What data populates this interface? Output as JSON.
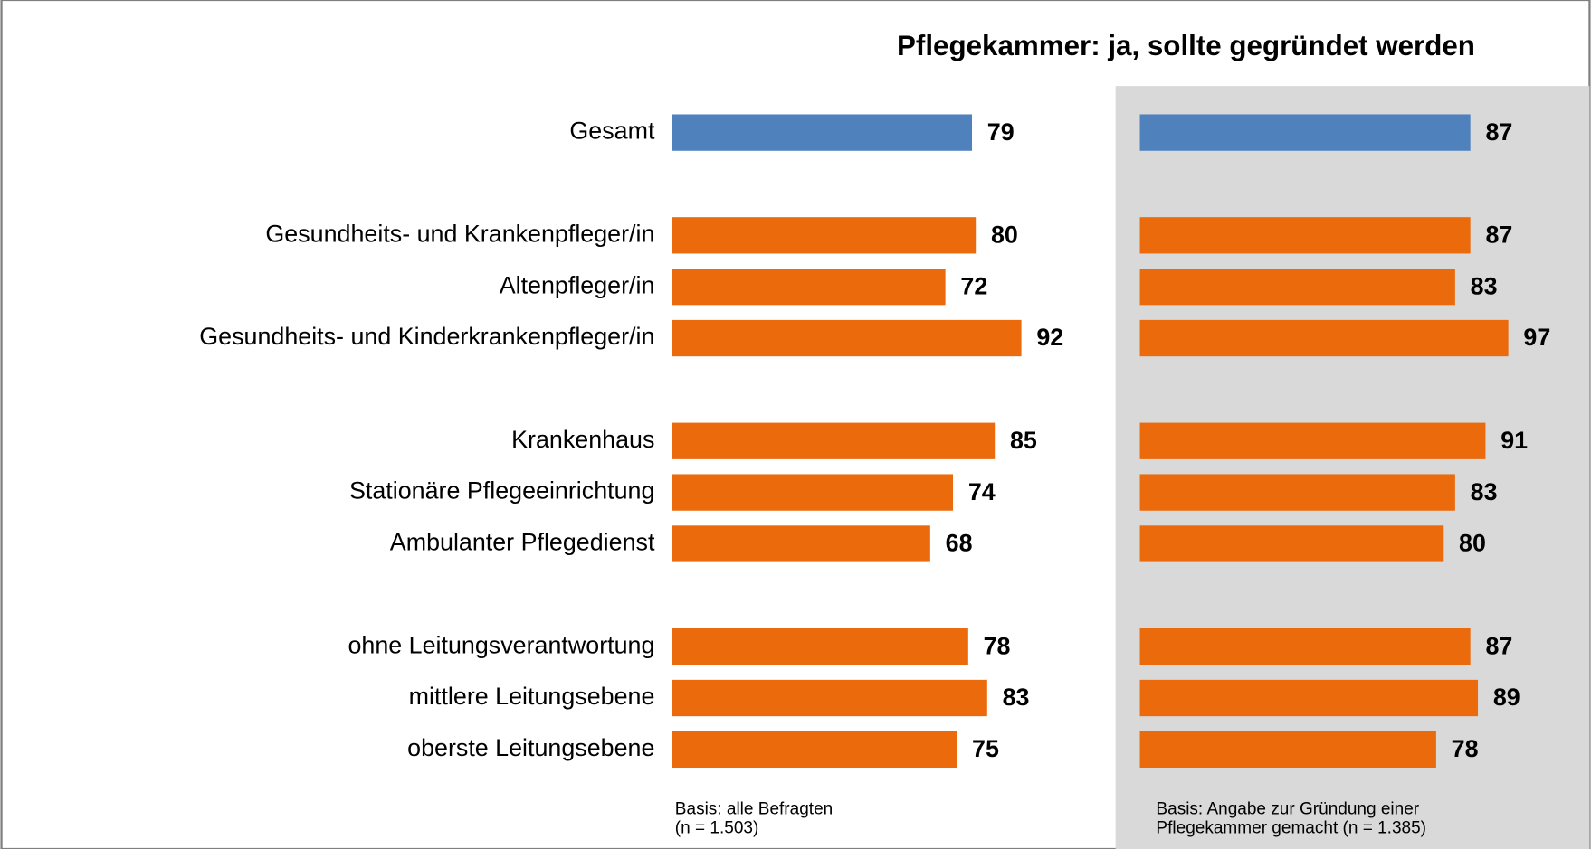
{
  "chart_data": {
    "type": "bar",
    "orientation": "horizontal",
    "title": "Pflegekammer: ja, sollte gegründet werden",
    "categories": [
      "Gesamt",
      "Gesundheits- und Krankenpfleger/in",
      "Altenpfleger/in",
      "Gesundheits- und Kinderkrankenpfleger/in",
      "Krankenhaus",
      "Stationäre Pflegeeinrichtung",
      "Ambulanter Pflegedienst",
      "ohne Leitungsverantwortung",
      "mittlere Leitungsebene",
      "oberste Leitungsebene"
    ],
    "series": [
      {
        "values": [
          79,
          80,
          72,
          92,
          85,
          74,
          68,
          78,
          83,
          75
        ],
        "colors": [
          "#4f81bd",
          "#eb6a0c",
          "#eb6a0c",
          "#eb6a0c",
          "#eb6a0c",
          "#eb6a0c",
          "#eb6a0c",
          "#eb6a0c",
          "#eb6a0c",
          "#eb6a0c"
        ],
        "note": [
          "Basis: alle Befragten",
          "(n = 1.503)"
        ]
      },
      {
        "values": [
          87,
          87,
          83,
          97,
          91,
          83,
          80,
          87,
          89,
          78
        ],
        "colors": [
          "#4f81bd",
          "#eb6a0c",
          "#eb6a0c",
          "#eb6a0c",
          "#eb6a0c",
          "#eb6a0c",
          "#eb6a0c",
          "#eb6a0c",
          "#eb6a0c",
          "#eb6a0c"
        ],
        "note": [
          "Basis: Angabe zur Gründung einer",
          "Pflegekammer gemacht  (n = 1.385)"
        ]
      }
    ]
  }
}
